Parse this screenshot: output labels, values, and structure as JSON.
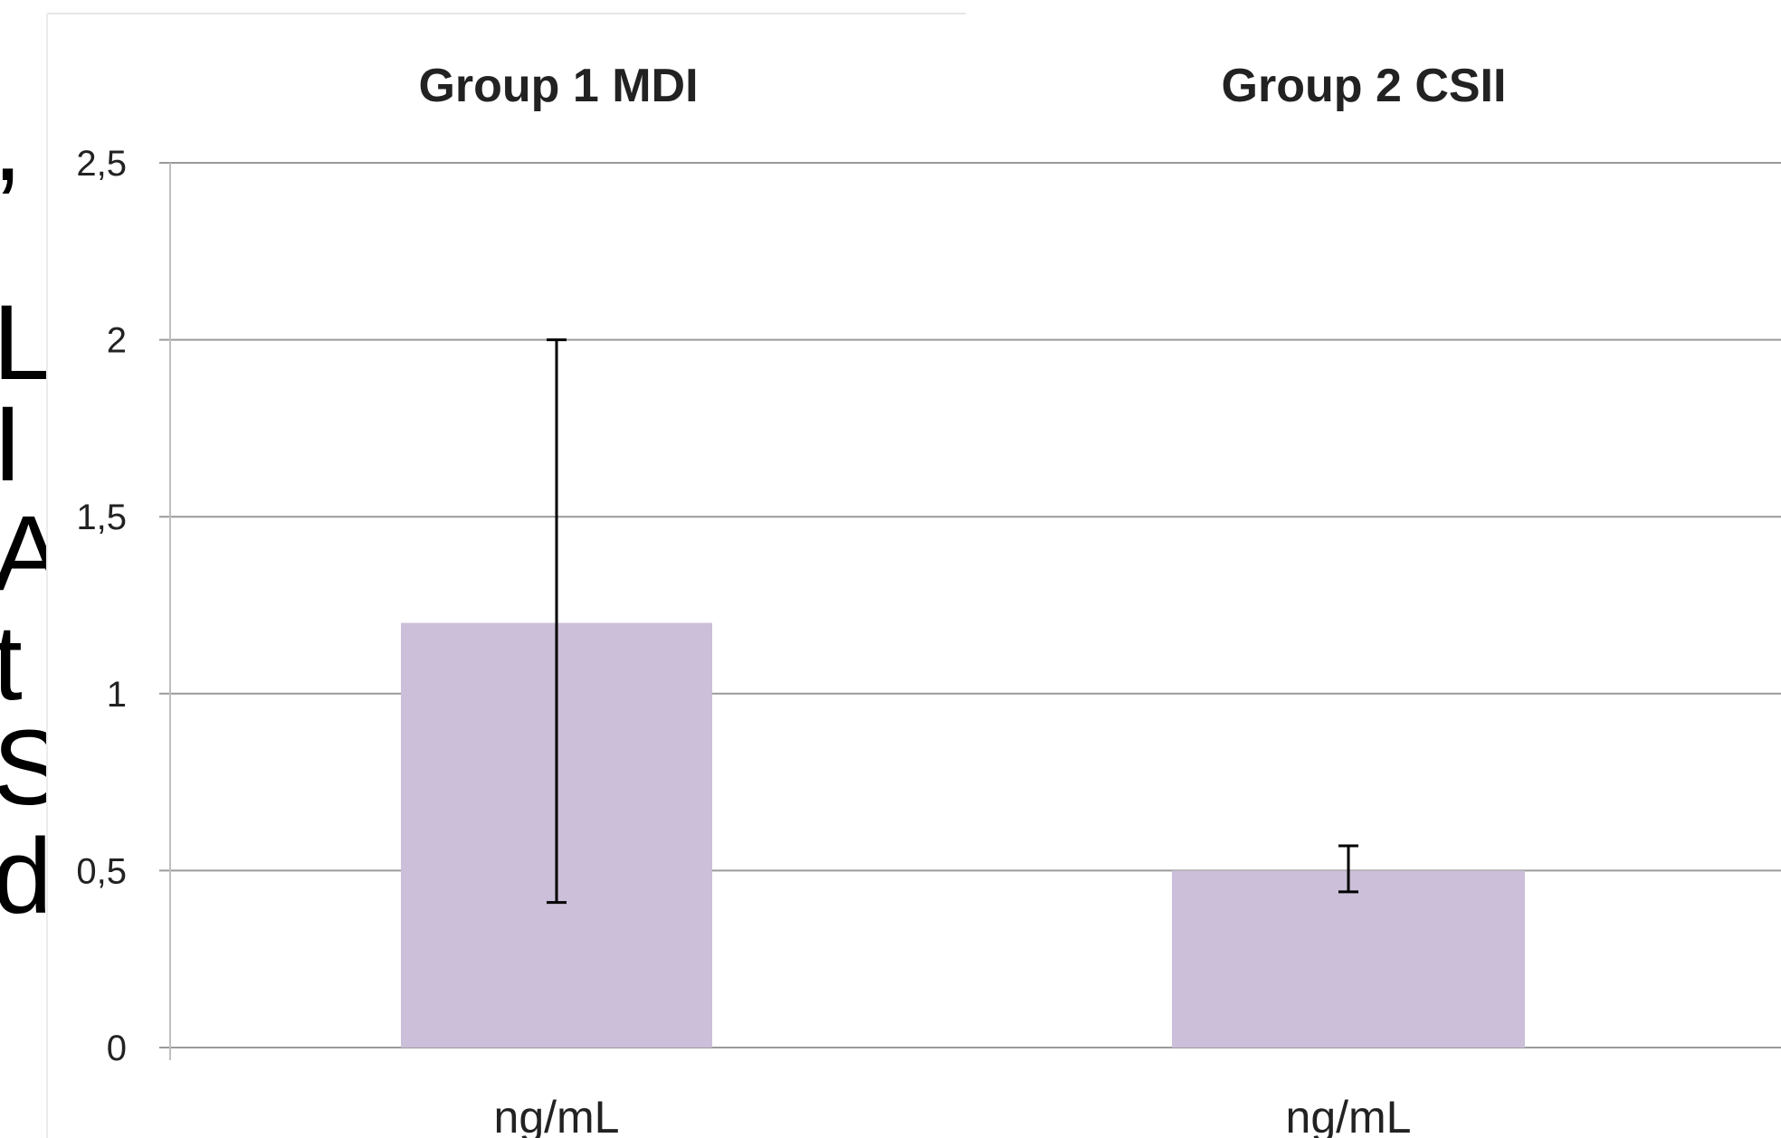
{
  "cropped_side_text": [
    ",",
    "L",
    "I",
    "A",
    "t",
    "S",
    "d"
  ],
  "chart_data": {
    "type": "bar",
    "ylim": [
      0,
      2.5
    ],
    "yticks": [
      0,
      0.5,
      1,
      1.5,
      2,
      2.5
    ],
    "ytick_labels": [
      "0",
      "0,5",
      "1",
      "1,5",
      "2",
      "2,5"
    ],
    "grid": true,
    "bar_color": "#cbbfd9",
    "error_bar_color": "#000000",
    "panels": [
      {
        "title": "Group 1 MDI",
        "xlabel": "ng/mL",
        "value": 1.2,
        "err_low": 0.41,
        "err_high": 2.0
      },
      {
        "title": "Group 2 CSII",
        "xlabel": "ng/mL",
        "value": 0.5,
        "err_low": 0.44,
        "err_high": 0.57
      }
    ]
  }
}
